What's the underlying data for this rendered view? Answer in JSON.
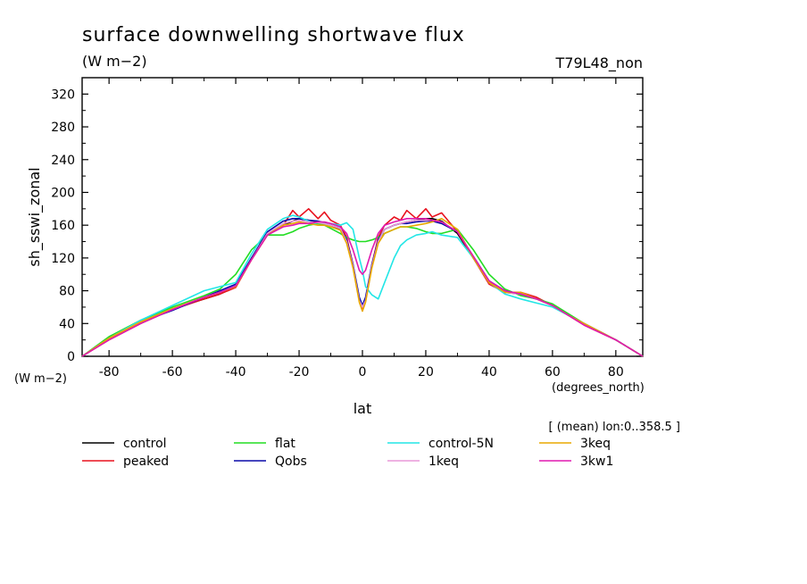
{
  "header": {
    "title": "surface downwelling shortwave flux",
    "units": "(W m−2)",
    "run": "T79L48_non"
  },
  "axes": {
    "y_unit_label": "(W m−2)",
    "x_unit_label": "(degrees_north)",
    "mean_note": "[ (mean) lon:0..358.5 ]"
  },
  "chart_data": {
    "type": "line",
    "title": "surface downwelling shortwave flux",
    "xlabel": "lat",
    "ylabel": "sh_sswi_zonal",
    "xlim": [
      -88.5,
      88.5
    ],
    "ylim": [
      0,
      340
    ],
    "xticks": [
      -80,
      -60,
      -40,
      -20,
      0,
      20,
      40,
      60,
      80
    ],
    "yticks": [
      0,
      40,
      80,
      120,
      160,
      200,
      240,
      280,
      320
    ],
    "legend_position": "below",
    "x": [
      -88.5,
      -80,
      -70,
      -60,
      -50,
      -45,
      -40,
      -35,
      -30,
      -25,
      -22,
      -20,
      -17,
      -14,
      -12,
      -10,
      -7,
      -5,
      -3,
      -1,
      0,
      1,
      3,
      5,
      7,
      10,
      12,
      14,
      17,
      20,
      22,
      25,
      30,
      35,
      40,
      45,
      50,
      55,
      60,
      65,
      70,
      80,
      88.5
    ],
    "series": [
      {
        "name": "control",
        "color": "#000000",
        "values": [
          0,
          22,
          42,
          58,
          70,
          76,
          85,
          120,
          150,
          160,
          165,
          168,
          166,
          164,
          162,
          160,
          155,
          140,
          110,
          70,
          62,
          70,
          110,
          140,
          155,
          160,
          162,
          164,
          166,
          168,
          168,
          165,
          150,
          120,
          90,
          78,
          76,
          70,
          62,
          50,
          40,
          20,
          0
        ]
      },
      {
        "name": "peaked",
        "color": "#e8101e",
        "values": [
          0,
          20,
          40,
          57,
          70,
          76,
          84,
          118,
          148,
          160,
          178,
          170,
          180,
          168,
          176,
          166,
          160,
          145,
          112,
          68,
          58,
          68,
          112,
          145,
          160,
          170,
          166,
          178,
          168,
          180,
          170,
          175,
          152,
          120,
          88,
          78,
          78,
          72,
          62,
          50,
          38,
          20,
          0
        ]
      },
      {
        "name": "flat",
        "color": "#22dd22",
        "values": [
          0,
          24,
          44,
          60,
          74,
          82,
          100,
          130,
          148,
          148,
          152,
          156,
          160,
          162,
          160,
          156,
          150,
          145,
          142,
          140,
          140,
          140,
          142,
          145,
          150,
          155,
          158,
          158,
          156,
          152,
          150,
          150,
          155,
          130,
          100,
          82,
          74,
          70,
          64,
          52,
          40,
          20,
          0
        ]
      },
      {
        "name": "Qobs",
        "color": "#0a0aa8",
        "values": [
          0,
          22,
          42,
          56,
          72,
          80,
          88,
          120,
          152,
          165,
          168,
          168,
          166,
          165,
          163,
          160,
          156,
          142,
          112,
          72,
          62,
          72,
          112,
          142,
          155,
          160,
          162,
          162,
          164,
          165,
          165,
          162,
          152,
          122,
          92,
          80,
          76,
          70,
          62,
          50,
          40,
          20,
          0
        ]
      },
      {
        "name": "control-5N",
        "color": "#22e6e6",
        "values": [
          0,
          22,
          44,
          62,
          80,
          85,
          90,
          125,
          155,
          168,
          172,
          170,
          165,
          160,
          160,
          162,
          160,
          163,
          155,
          120,
          105,
          85,
          75,
          70,
          90,
          120,
          135,
          142,
          148,
          150,
          152,
          148,
          145,
          120,
          90,
          76,
          70,
          65,
          60,
          50,
          40,
          20,
          0
        ]
      },
      {
        "name": "1keq",
        "color": "#e898d8",
        "values": [
          0,
          22,
          42,
          58,
          72,
          78,
          86,
          118,
          150,
          162,
          165,
          166,
          164,
          163,
          162,
          160,
          156,
          140,
          110,
          68,
          60,
          68,
          110,
          140,
          155,
          160,
          162,
          164,
          166,
          166,
          166,
          164,
          152,
          122,
          90,
          78,
          76,
          70,
          62,
          50,
          40,
          20,
          0
        ]
      },
      {
        "name": "3keq",
        "color": "#e8a800",
        "values": [
          0,
          22,
          42,
          58,
          72,
          78,
          85,
          118,
          148,
          160,
          162,
          164,
          162,
          160,
          160,
          158,
          154,
          138,
          108,
          66,
          55,
          66,
          108,
          138,
          150,
          155,
          158,
          158,
          160,
          162,
          164,
          168,
          155,
          120,
          90,
          78,
          78,
          70,
          62,
          50,
          40,
          20,
          0
        ]
      },
      {
        "name": "3kw1",
        "color": "#e018b0",
        "values": [
          0,
          20,
          40,
          57,
          72,
          78,
          86,
          118,
          148,
          158,
          160,
          162,
          162,
          164,
          164,
          162,
          158,
          150,
          130,
          105,
          100,
          105,
          130,
          150,
          160,
          164,
          166,
          168,
          168,
          168,
          166,
          164,
          152,
          122,
          92,
          80,
          76,
          70,
          62,
          50,
          38,
          20,
          0
        ]
      }
    ]
  }
}
